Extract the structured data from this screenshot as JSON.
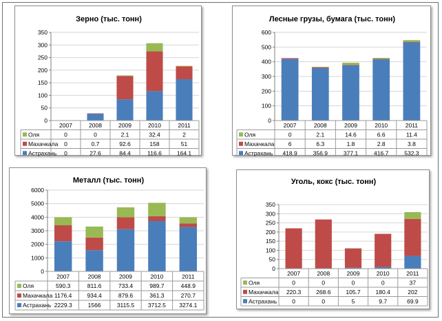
{
  "colors": {
    "astrakhan": "#4a7ebb",
    "makhachkala": "#be4b48",
    "olya": "#98b954"
  },
  "chart_data": [
    {
      "type": "bar",
      "stacked": true,
      "title": "Зерно (тыс. тонн)",
      "categories": [
        "2007",
        "2008",
        "2009",
        "2010",
        "2011"
      ],
      "ylim": [
        0,
        350
      ],
      "yticks": [
        "0",
        "50",
        "100",
        "150",
        "200",
        "250",
        "300",
        "350"
      ],
      "series": [
        {
          "name": "Астрахань",
          "values": [
            0,
            27.6,
            84.4,
            116.6,
            164.1
          ],
          "labels": [
            "0",
            "27.6",
            "84.4",
            "116.6",
            "164.1"
          ],
          "color": "#4a7ebb"
        },
        {
          "name": "Махачкала",
          "values": [
            0,
            0.7,
            92.6,
            158,
            51
          ],
          "labels": [
            "0",
            "0.7",
            "92.6",
            "158",
            "51"
          ],
          "color": "#be4b48"
        },
        {
          "name": "Оля",
          "values": [
            0,
            0,
            2.1,
            32.4,
            2
          ],
          "labels": [
            "0",
            "0",
            "2.1",
            "32.4",
            "2"
          ],
          "color": "#98b954"
        }
      ],
      "grid": true,
      "legend": "data-table"
    },
    {
      "type": "bar",
      "stacked": true,
      "title": "Лесные грузы, бумага (тыс. тонн)",
      "categories": [
        "2007",
        "2008",
        "2009",
        "2010",
        "2011"
      ],
      "ylim": [
        0,
        600
      ],
      "yticks": [
        "0",
        "100",
        "200",
        "300",
        "400",
        "500",
        "600"
      ],
      "series": [
        {
          "name": "Астрахань",
          "values": [
            418.9,
            356.9,
            377.1,
            416.7,
            532.3
          ],
          "labels": [
            "418.9",
            "356.9",
            "377.1",
            "416.7",
            "532.3"
          ],
          "color": "#4a7ebb"
        },
        {
          "name": "Махачкала",
          "values": [
            6,
            6.3,
            1.8,
            2.8,
            3.8
          ],
          "labels": [
            "6",
            "6.3",
            "1.8",
            "2.8",
            "3.8"
          ],
          "color": "#be4b48"
        },
        {
          "name": "Оля",
          "values": [
            0,
            2.1,
            14.6,
            6.6,
            11.4
          ],
          "labels": [
            "0",
            "2.1",
            "14.6",
            "6.6",
            "11.4"
          ],
          "color": "#98b954"
        }
      ],
      "grid": true,
      "legend": "data-table"
    },
    {
      "type": "bar",
      "stacked": true,
      "title": "Металл (тыс. тонн)",
      "categories": [
        "2007",
        "2008",
        "2009",
        "2010",
        "2011"
      ],
      "ylim": [
        0,
        6000
      ],
      "yticks": [
        "0",
        "1000",
        "2000",
        "3000",
        "4000",
        "5000",
        "6000"
      ],
      "series": [
        {
          "name": "Астрахань",
          "values": [
            2229.3,
            1566,
            3115.5,
            3712.5,
            3274.1
          ],
          "labels": [
            "2229.3",
            "1566",
            "3115.5",
            "3712.5",
            "3274.1"
          ],
          "color": "#4a7ebb"
        },
        {
          "name": "Махачкала",
          "values": [
            1176.4,
            934.4,
            879.6,
            361.3,
            270.7
          ],
          "labels": [
            "1176.4",
            "934.4",
            "879.6",
            "361.3",
            "270.7"
          ],
          "color": "#be4b48"
        },
        {
          "name": "Оля",
          "values": [
            590.3,
            811.6,
            733.4,
            989.7,
            448.9
          ],
          "labels": [
            "590.3",
            "811.6",
            "733.4",
            "989.7",
            "448.9"
          ],
          "color": "#98b954"
        }
      ],
      "grid": true,
      "legend": "data-table"
    },
    {
      "type": "bar",
      "stacked": true,
      "title": "Уголь, кокс (тыс. тонн)",
      "categories": [
        "2007",
        "2008",
        "2009",
        "2010",
        "2011"
      ],
      "ylim": [
        0,
        350
      ],
      "yticks": [
        "0",
        "50",
        "100",
        "150",
        "200",
        "250",
        "300",
        "350"
      ],
      "series": [
        {
          "name": "Астрахань",
          "values": [
            0,
            0,
            5,
            9.7,
            69.9
          ],
          "labels": [
            "0",
            "0",
            "5",
            "9.7",
            "69.9"
          ],
          "color": "#4a7ebb"
        },
        {
          "name": "Махачкала",
          "values": [
            220.3,
            268.6,
            105.7,
            180.4,
            202
          ],
          "labels": [
            "220.3",
            "268.6",
            "105.7",
            "180.4",
            "202"
          ],
          "color": "#be4b48"
        },
        {
          "name": "Оля",
          "values": [
            0,
            0,
            0,
            0,
            37
          ],
          "labels": [
            "0",
            "0",
            "0",
            "0",
            "37"
          ],
          "color": "#98b954"
        }
      ],
      "grid": true,
      "legend": "data-table"
    }
  ]
}
